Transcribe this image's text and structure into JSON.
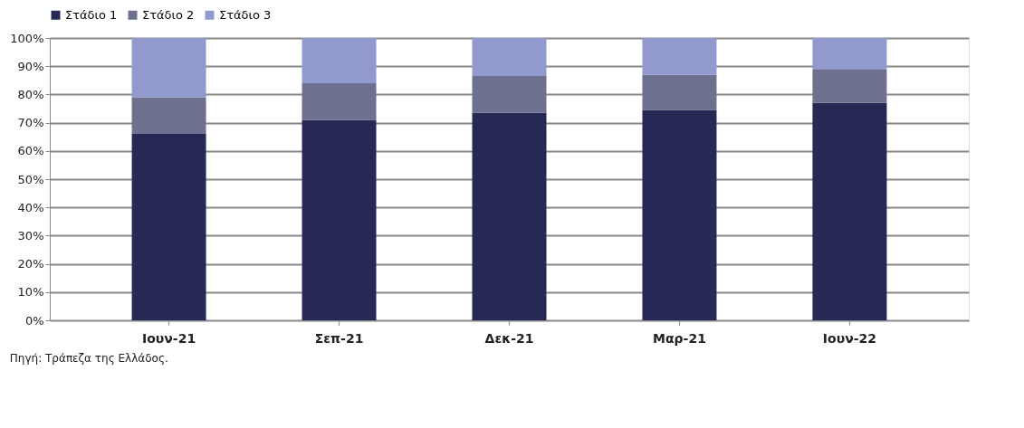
{
  "chart_data": {
    "type": "bar",
    "stacked": true,
    "categories": [
      "Ιουν-21",
      "Σεπ-21",
      "Δεκ-21",
      "Μαρ-21",
      "Ιουν-22"
    ],
    "series": [
      {
        "name": "Στάδιο 1",
        "color": "#262855",
        "values": [
          66,
          71,
          73.5,
          74.5,
          77
        ]
      },
      {
        "name": "Στάδιο 2",
        "color": "#6e7090",
        "values": [
          13,
          13,
          13,
          12.5,
          12
        ]
      },
      {
        "name": "Στάδιο 3",
        "color": "#9299cf",
        "values": [
          21,
          16,
          13.5,
          13,
          11
        ]
      }
    ],
    "ylim": [
      0,
      100
    ],
    "yticks": [
      {
        "value": 0,
        "label": "0%"
      },
      {
        "value": 10,
        "label": "10%"
      },
      {
        "value": 20,
        "label": "20%"
      },
      {
        "value": 30,
        "label": "30%"
      },
      {
        "value": 40,
        "label": "40%"
      },
      {
        "value": 50,
        "label": "50%"
      },
      {
        "value": 60,
        "label": "60%"
      },
      {
        "value": 70,
        "label": "70%"
      },
      {
        "value": 80,
        "label": "80%"
      },
      {
        "value": 90,
        "label": "90%"
      },
      {
        "value": 100,
        "label": "100%"
      }
    ],
    "grid": "y",
    "legend": "top",
    "annotations": [
      "Πηγή: Τράπεζα της Ελλάδος."
    ]
  }
}
